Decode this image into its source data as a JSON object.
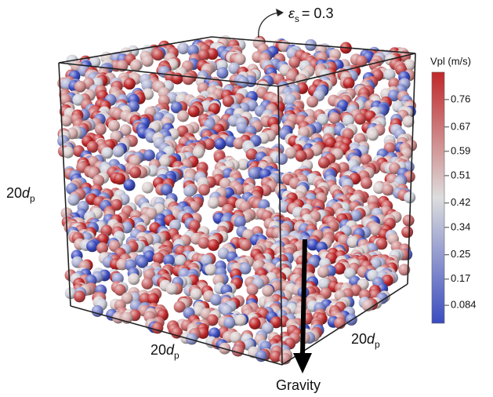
{
  "annotation": {
    "symbol": "ε",
    "subscript": "s",
    "text": "= 0.3"
  },
  "dimension_labels": [
    {
      "prefix": "20",
      "symbol": "d",
      "subscript": "p"
    },
    {
      "prefix": "20",
      "symbol": "d",
      "subscript": "p"
    },
    {
      "prefix": "20",
      "symbol": "d",
      "subscript": "p"
    }
  ],
  "gravity_label": "Gravity",
  "colorbar": {
    "title": "Vpl (m/s)",
    "range": [
      0.025,
      0.85
    ],
    "ticks": [
      0.76,
      0.67,
      0.59,
      0.51,
      0.42,
      0.34,
      0.25,
      0.17,
      0.084
    ],
    "colors": [
      "#3b4cc0",
      "#dddddd",
      "#c0282a"
    ]
  }
}
